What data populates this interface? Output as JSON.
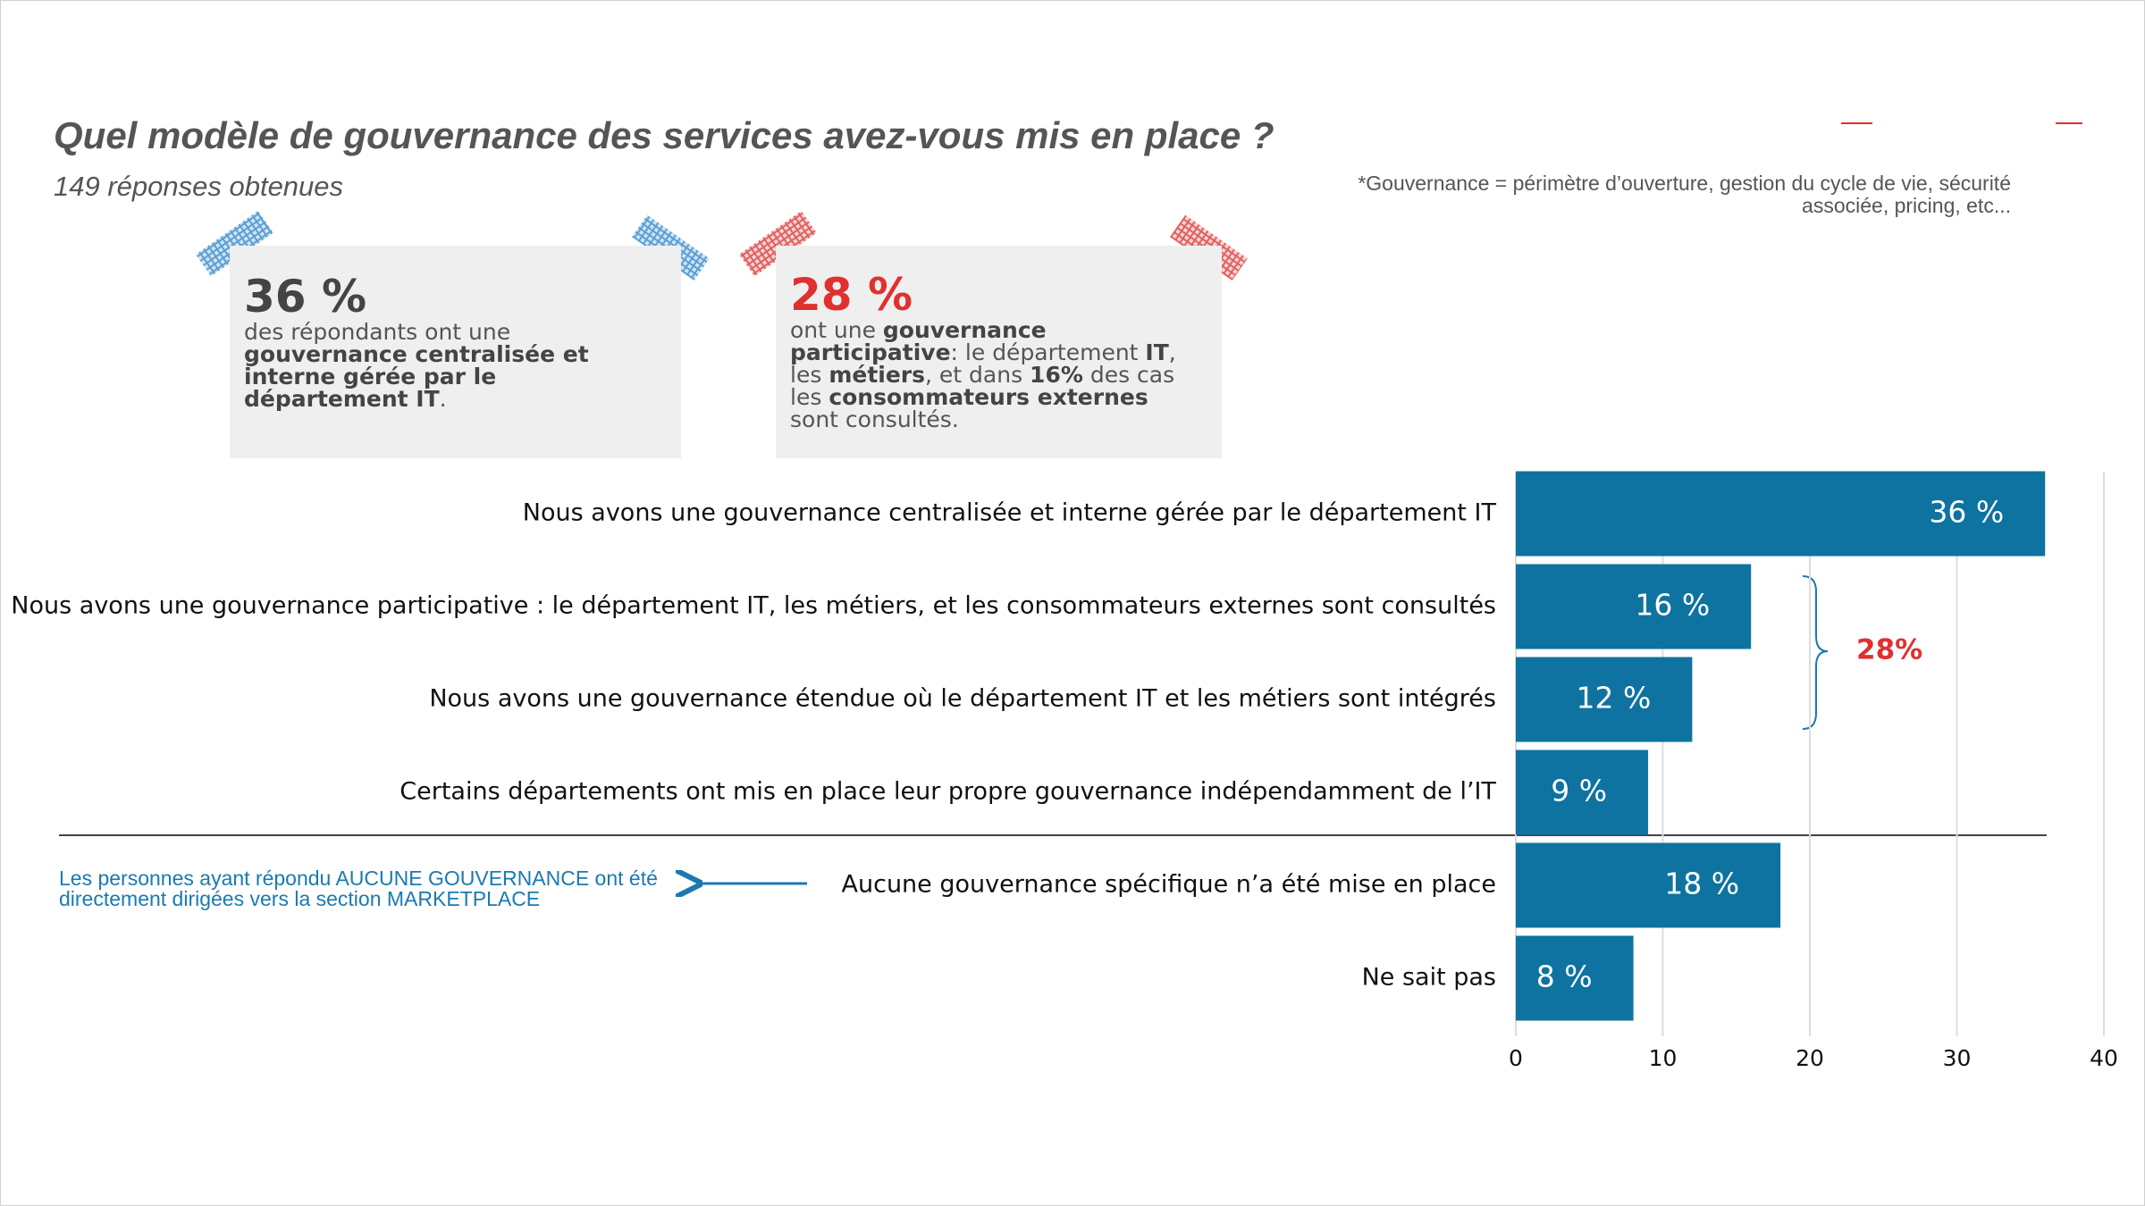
{
  "chart_data": {
    "type": "barh",
    "title": "Quel modèle de gouvernance des services avez-vous mis en place ?",
    "subtitle": "149 réponses obtenues",
    "note": [
      "*Gouvernance = périmètre d’ouverture, gestion du cycle de vie, sécurité",
      "associée, pricing, etc..."
    ],
    "categories": [
      "Nous avons une gouvernance centralisée et interne gérée par le département IT",
      "Nous avons une gouvernance participative : le département IT, les métiers, et les consommateurs externes sont consultés",
      "Nous avons une gouvernance étendue où le département IT et les métiers sont intégrés",
      "Certains départements ont mis en place leur propre gouvernance indépendamment de l’IT",
      "Aucune gouvernance spécifique n’a été mise en place",
      "Ne sait pas"
    ],
    "values": [
      36,
      16,
      12,
      9,
      18,
      8
    ],
    "value_labels": [
      "36 %",
      "16 %",
      "12 %",
      "9 %",
      "18 %",
      "8 %"
    ],
    "color": "#0e73a0",
    "xlim": [
      0,
      40
    ],
    "xticks": [
      0,
      10,
      20,
      30,
      40
    ],
    "grid": true,
    "bracket": {
      "label": "28%",
      "color": "#e03030"
    }
  },
  "callouts": [
    {
      "value": "36 %",
      "color": "#444444",
      "body": [
        {
          "text": "des répondants ont une ",
          "bold": false
        },
        {
          "text": "gouvernance centralisée et interne gérée par le département IT",
          "bold": true
        },
        {
          "text": ".",
          "bold": false
        }
      ]
    },
    {
      "value": "28 %",
      "color": "#e03030",
      "body": [
        {
          "text": "ont une ",
          "bold": false
        },
        {
          "text": "gouvernance participative",
          "bold": true
        },
        {
          "text": ": le département ",
          "bold": false
        },
        {
          "text": "IT",
          "bold": true
        },
        {
          "text": ", les ",
          "bold": false
        },
        {
          "text": "métiers",
          "bold": true
        },
        {
          "text": ", et dans ",
          "bold": false
        },
        {
          "text": "16%",
          "bold": true
        },
        {
          "text": " des cas les ",
          "bold": false
        },
        {
          "text": "consommateurs externes",
          "bold": true
        },
        {
          "text": " sont consultés.",
          "bold": false
        }
      ]
    }
  ],
  "side_note": "Les personnes ayant répondu AUCUNE GOUVERNANCE ont été directement dirigées vers la section MARKETPLACE"
}
